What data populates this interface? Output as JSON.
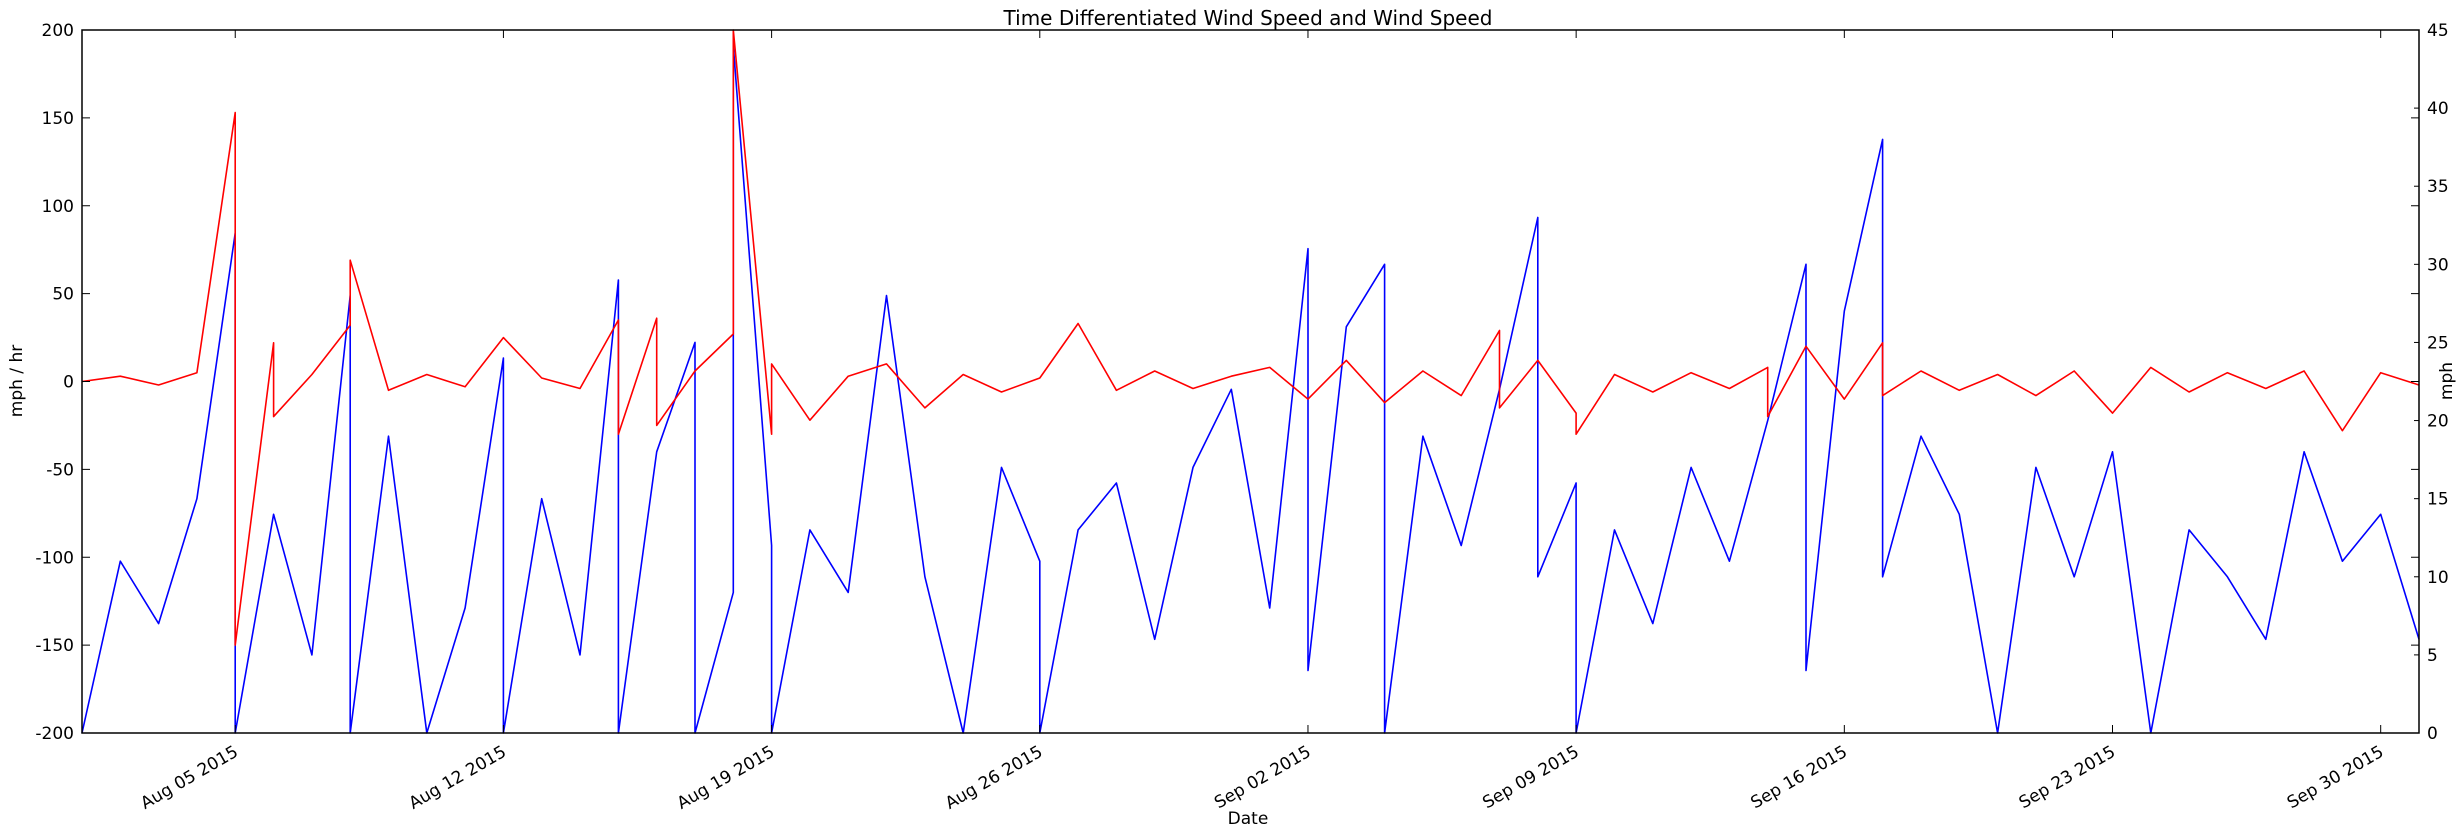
{
  "chart_data": {
    "type": "line",
    "title": "Time Differentiated Wind Speed and Wind Speed",
    "xlabel": "Date",
    "ylabel_left": "mph / hr",
    "ylabel_right": "mph",
    "x_range": [
      "2015-08-01",
      "2015-10-01"
    ],
    "ylim_left": [
      -200,
      200
    ],
    "ylim_right": [
      0,
      45
    ],
    "x_ticks": [
      {
        "date": "2015-08-05",
        "label": "Aug 05 2015"
      },
      {
        "date": "2015-08-12",
        "label": "Aug 12 2015"
      },
      {
        "date": "2015-08-19",
        "label": "Aug 19 2015"
      },
      {
        "date": "2015-08-26",
        "label": "Aug 26 2015"
      },
      {
        "date": "2015-09-02",
        "label": "Sep 02 2015"
      },
      {
        "date": "2015-09-09",
        "label": "Sep 09 2015"
      },
      {
        "date": "2015-09-16",
        "label": "Sep 16 2015"
      },
      {
        "date": "2015-09-23",
        "label": "Sep 23 2015"
      },
      {
        "date": "2015-09-30",
        "label": "Sep 30 2015"
      }
    ],
    "y_ticks_left": [
      "-200",
      "-150",
      "-100",
      "-50",
      "0",
      "50",
      "100",
      "150",
      "200"
    ],
    "y_ticks_right": [
      "0",
      "5",
      "10",
      "15",
      "20",
      "25",
      "30",
      "35",
      "40",
      "45"
    ],
    "grid": false,
    "legend": "none",
    "series": [
      {
        "axis": "left",
        "color": "#ff0000",
        "points": [
          [
            "2015-08-01",
            0
          ],
          [
            "2015-08-02",
            3
          ],
          [
            "2015-08-03",
            -2
          ],
          [
            "2015-08-04",
            5
          ],
          [
            "2015-08-05",
            153
          ],
          [
            "2015-08-05",
            -150
          ],
          [
            "2015-08-06",
            22
          ],
          [
            "2015-08-06",
            -20
          ],
          [
            "2015-08-07",
            4
          ],
          [
            "2015-08-08",
            32
          ],
          [
            "2015-08-08",
            69
          ],
          [
            "2015-08-09",
            -5
          ],
          [
            "2015-08-10",
            4
          ],
          [
            "2015-08-11",
            -3
          ],
          [
            "2015-08-12",
            25
          ],
          [
            "2015-08-13",
            2
          ],
          [
            "2015-08-14",
            -4
          ],
          [
            "2015-08-15",
            35
          ],
          [
            "2015-08-15",
            -30
          ],
          [
            "2015-08-16",
            36
          ],
          [
            "2015-08-16",
            -25
          ],
          [
            "2015-08-17",
            6
          ],
          [
            "2015-08-18",
            27
          ],
          [
            "2015-08-18",
            200
          ],
          [
            "2015-08-19",
            -30
          ],
          [
            "2015-08-19",
            10
          ],
          [
            "2015-08-20",
            -22
          ],
          [
            "2015-08-21",
            3
          ],
          [
            "2015-08-22",
            10
          ],
          [
            "2015-08-23",
            -15
          ],
          [
            "2015-08-24",
            4
          ],
          [
            "2015-08-25",
            -6
          ],
          [
            "2015-08-26",
            2
          ],
          [
            "2015-08-27",
            33
          ],
          [
            "2015-08-28",
            -5
          ],
          [
            "2015-08-29",
            6
          ],
          [
            "2015-08-30",
            -4
          ],
          [
            "2015-08-31",
            3
          ],
          [
            "2015-09-01",
            8
          ],
          [
            "2015-09-02",
            -10
          ],
          [
            "2015-09-03",
            12
          ],
          [
            "2015-09-04",
            -12
          ],
          [
            "2015-09-05",
            6
          ],
          [
            "2015-09-06",
            -8
          ],
          [
            "2015-09-07",
            29
          ],
          [
            "2015-09-07",
            -15
          ],
          [
            "2015-09-08",
            12
          ],
          [
            "2015-09-09",
            -18
          ],
          [
            "2015-09-09",
            -30
          ],
          [
            "2015-09-10",
            4
          ],
          [
            "2015-09-11",
            -6
          ],
          [
            "2015-09-12",
            5
          ],
          [
            "2015-09-13",
            -4
          ],
          [
            "2015-09-14",
            8
          ],
          [
            "2015-09-14",
            -20
          ],
          [
            "2015-09-15",
            20
          ],
          [
            "2015-09-16",
            -10
          ],
          [
            "2015-09-17",
            22
          ],
          [
            "2015-09-17",
            -8
          ],
          [
            "2015-09-18",
            6
          ],
          [
            "2015-09-19",
            -5
          ],
          [
            "2015-09-20",
            4
          ],
          [
            "2015-09-21",
            -8
          ],
          [
            "2015-09-22",
            6
          ],
          [
            "2015-09-23",
            -18
          ],
          [
            "2015-09-24",
            8
          ],
          [
            "2015-09-25",
            -6
          ],
          [
            "2015-09-26",
            5
          ],
          [
            "2015-09-27",
            -4
          ],
          [
            "2015-09-28",
            6
          ],
          [
            "2015-09-29",
            -28
          ],
          [
            "2015-09-30",
            5
          ],
          [
            "2015-10-01",
            -2
          ]
        ]
      },
      {
        "axis": "right",
        "color": "#0000ff",
        "points": [
          [
            "2015-08-01",
            0
          ],
          [
            "2015-08-02",
            11
          ],
          [
            "2015-08-03",
            7
          ],
          [
            "2015-08-04",
            15
          ],
          [
            "2015-08-05",
            32
          ],
          [
            "2015-08-05",
            0
          ],
          [
            "2015-08-06",
            14
          ],
          [
            "2015-08-07",
            5
          ],
          [
            "2015-08-08",
            28
          ],
          [
            "2015-08-08",
            0
          ],
          [
            "2015-08-09",
            19
          ],
          [
            "2015-08-10",
            0
          ],
          [
            "2015-08-11",
            8
          ],
          [
            "2015-08-12",
            24
          ],
          [
            "2015-08-12",
            0
          ],
          [
            "2015-08-13",
            15
          ],
          [
            "2015-08-14",
            5
          ],
          [
            "2015-08-15",
            29
          ],
          [
            "2015-08-15",
            0
          ],
          [
            "2015-08-16",
            18
          ],
          [
            "2015-08-17",
            25
          ],
          [
            "2015-08-17",
            0
          ],
          [
            "2015-08-18",
            9
          ],
          [
            "2015-08-18",
            44
          ],
          [
            "2015-08-19",
            12
          ],
          [
            "2015-08-19",
            0
          ],
          [
            "2015-08-20",
            13
          ],
          [
            "2015-08-21",
            9
          ],
          [
            "2015-08-22",
            28
          ],
          [
            "2015-08-23",
            10
          ],
          [
            "2015-08-24",
            0
          ],
          [
            "2015-08-25",
            17
          ],
          [
            "2015-08-26",
            11
          ],
          [
            "2015-08-26",
            0
          ],
          [
            "2015-08-27",
            13
          ],
          [
            "2015-08-28",
            16
          ],
          [
            "2015-08-29",
            6
          ],
          [
            "2015-08-30",
            17
          ],
          [
            "2015-08-31",
            22
          ],
          [
            "2015-09-01",
            8
          ],
          [
            "2015-09-02",
            31
          ],
          [
            "2015-09-02",
            4
          ],
          [
            "2015-09-03",
            26
          ],
          [
            "2015-09-04",
            30
          ],
          [
            "2015-09-04",
            0
          ],
          [
            "2015-09-05",
            19
          ],
          [
            "2015-09-06",
            12
          ],
          [
            "2015-09-07",
            22
          ],
          [
            "2015-09-08",
            33
          ],
          [
            "2015-09-08",
            10
          ],
          [
            "2015-09-09",
            16
          ],
          [
            "2015-09-09",
            0
          ],
          [
            "2015-09-10",
            13
          ],
          [
            "2015-09-11",
            7
          ],
          [
            "2015-09-12",
            17
          ],
          [
            "2015-09-13",
            11
          ],
          [
            "2015-09-14",
            20
          ],
          [
            "2015-09-15",
            30
          ],
          [
            "2015-09-15",
            4
          ],
          [
            "2015-09-16",
            27
          ],
          [
            "2015-09-17",
            38
          ],
          [
            "2015-09-17",
            10
          ],
          [
            "2015-09-18",
            19
          ],
          [
            "2015-09-19",
            14
          ],
          [
            "2015-09-20",
            0
          ],
          [
            "2015-09-21",
            17
          ],
          [
            "2015-09-22",
            10
          ],
          [
            "2015-09-23",
            18
          ],
          [
            "2015-09-24",
            0
          ],
          [
            "2015-09-25",
            13
          ],
          [
            "2015-09-26",
            10
          ],
          [
            "2015-09-27",
            6
          ],
          [
            "2015-09-28",
            18
          ],
          [
            "2015-09-29",
            11
          ],
          [
            "2015-09-30",
            14
          ],
          [
            "2015-10-01",
            6
          ]
        ]
      }
    ]
  }
}
